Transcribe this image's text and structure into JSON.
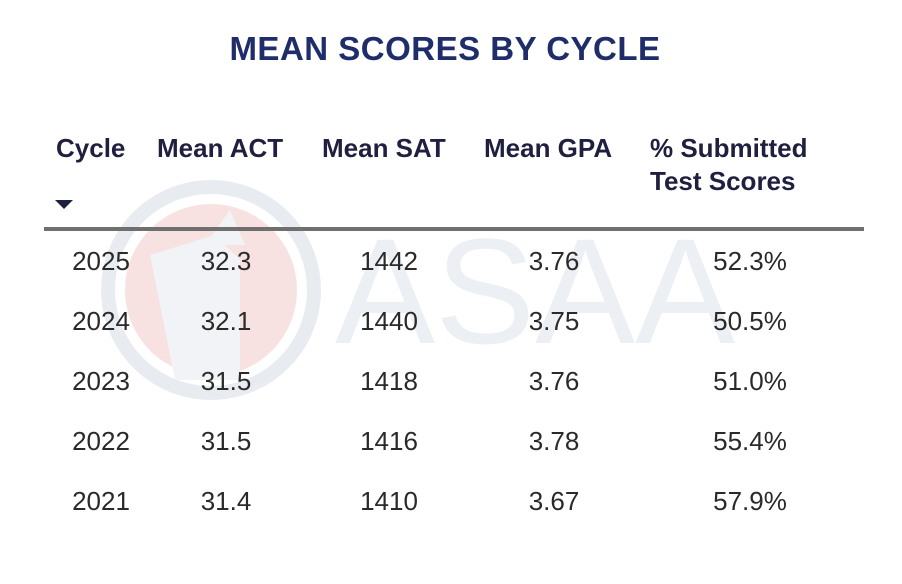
{
  "title": "MEAN SCORES BY CYCLE",
  "watermark_text": "ASAA",
  "colors": {
    "title": "#1f2d6b",
    "rule": "#6f6f6f",
    "watermark_blue": "#d7dde6",
    "watermark_red": "#f3c9c9"
  },
  "chart_data": {
    "type": "table",
    "title": "MEAN SCORES BY CYCLE",
    "columns": [
      "Cycle",
      "Mean ACT",
      "Mean SAT",
      "Mean GPA",
      "% Submitted Test Scores"
    ],
    "sorted_column": "Cycle",
    "sort_direction": "descending",
    "rows": [
      [
        "2025",
        "32.3",
        "1442",
        "3.76",
        "52.3%"
      ],
      [
        "2024",
        "32.1",
        "1440",
        "3.75",
        "50.5%"
      ],
      [
        "2023",
        "31.5",
        "1418",
        "3.76",
        "51.0%"
      ],
      [
        "2022",
        "31.5",
        "1416",
        "3.78",
        "55.4%"
      ],
      [
        "2021",
        "31.4",
        "1410",
        "3.67",
        "57.9%"
      ]
    ]
  }
}
